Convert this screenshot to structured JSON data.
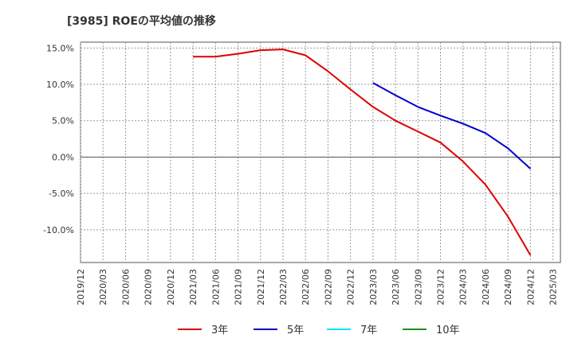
{
  "chart_data": {
    "type": "line",
    "title": "[3985]  ROEの平均値の推移",
    "xlabel": "",
    "ylabel": "",
    "ylim": [
      -14.5,
      15.8
    ],
    "yticks": [
      15,
      10,
      5,
      0,
      -5,
      -10
    ],
    "ytick_labels": [
      "15.0%",
      "10.0%",
      "5.0%",
      "0.0%",
      "-5.0%",
      "-10.0%"
    ],
    "x_range": [
      2019.917,
      2025.25
    ],
    "xticks": [
      2019.917,
      2020.167,
      2020.417,
      2020.667,
      2020.917,
      2021.167,
      2021.417,
      2021.667,
      2021.917,
      2022.167,
      2022.417,
      2022.667,
      2022.917,
      2023.167,
      2023.417,
      2023.667,
      2023.917,
      2024.167,
      2024.417,
      2024.667,
      2024.917,
      2025.167
    ],
    "xtick_labels": [
      "2019/12",
      "2020/03",
      "2020/06",
      "2020/09",
      "2020/12",
      "2021/03",
      "2021/06",
      "2021/09",
      "2021/12",
      "2022/03",
      "2022/06",
      "2022/09",
      "2022/12",
      "2023/03",
      "2023/06",
      "2023/09",
      "2023/12",
      "2024/03",
      "2024/06",
      "2024/09",
      "2024/12",
      "2025/03"
    ],
    "grid": true,
    "legend_position": "bottom",
    "series": [
      {
        "name": "3年",
        "color": "#dd0000",
        "x": [
          2021.167,
          2021.417,
          2021.667,
          2021.917,
          2022.167,
          2022.417,
          2022.667,
          2022.917,
          2023.167,
          2023.417,
          2023.667,
          2023.917,
          2024.167,
          2024.417,
          2024.667,
          2024.917
        ],
        "y": [
          13.8,
          13.8,
          14.2,
          14.7,
          14.8,
          14.0,
          11.8,
          9.3,
          6.9,
          5.0,
          3.5,
          2.0,
          -0.6,
          -3.8,
          -8.2,
          -13.5
        ]
      },
      {
        "name": "5年",
        "color": "#0000cc",
        "x": [
          2023.167,
          2023.417,
          2023.667,
          2023.917,
          2024.167,
          2024.417,
          2024.667,
          2024.917
        ],
        "y": [
          10.2,
          8.5,
          6.9,
          5.7,
          4.6,
          3.3,
          1.2,
          -1.6
        ]
      },
      {
        "name": "7年",
        "color": "#00e5ee",
        "x": [],
        "y": []
      },
      {
        "name": "10年",
        "color": "#228b22",
        "x": [],
        "y": []
      }
    ]
  }
}
